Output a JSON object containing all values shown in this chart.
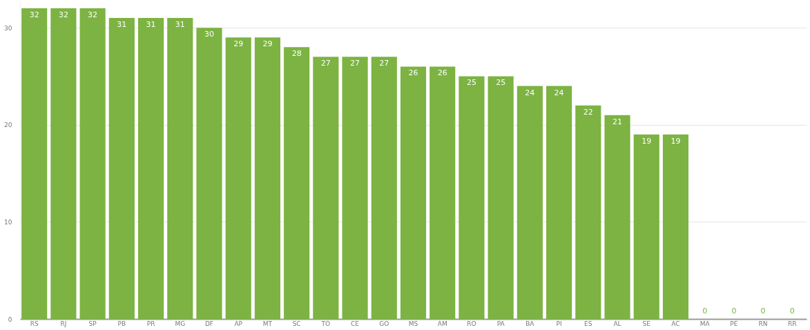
{
  "chart_data": {
    "type": "bar",
    "categories": [
      "RS",
      "RJ",
      "SP",
      "PB",
      "PR",
      "MG",
      "DF",
      "AP",
      "MT",
      "SC",
      "TO",
      "CE",
      "GO",
      "MS",
      "AM",
      "RO",
      "PA",
      "BA",
      "PI",
      "ES",
      "AL",
      "SE",
      "AC",
      "MA",
      "PE",
      "RN",
      "RR"
    ],
    "values": [
      32,
      32,
      32,
      31,
      31,
      31,
      30,
      29,
      29,
      28,
      27,
      27,
      27,
      26,
      26,
      25,
      25,
      24,
      24,
      22,
      21,
      19,
      19,
      0,
      0,
      0,
      0
    ],
    "color": "#7cb342",
    "ylim": [
      0,
      32.5
    ],
    "yticks": [
      0,
      10,
      20,
      30
    ],
    "grid": "y",
    "data_labels": true
  }
}
